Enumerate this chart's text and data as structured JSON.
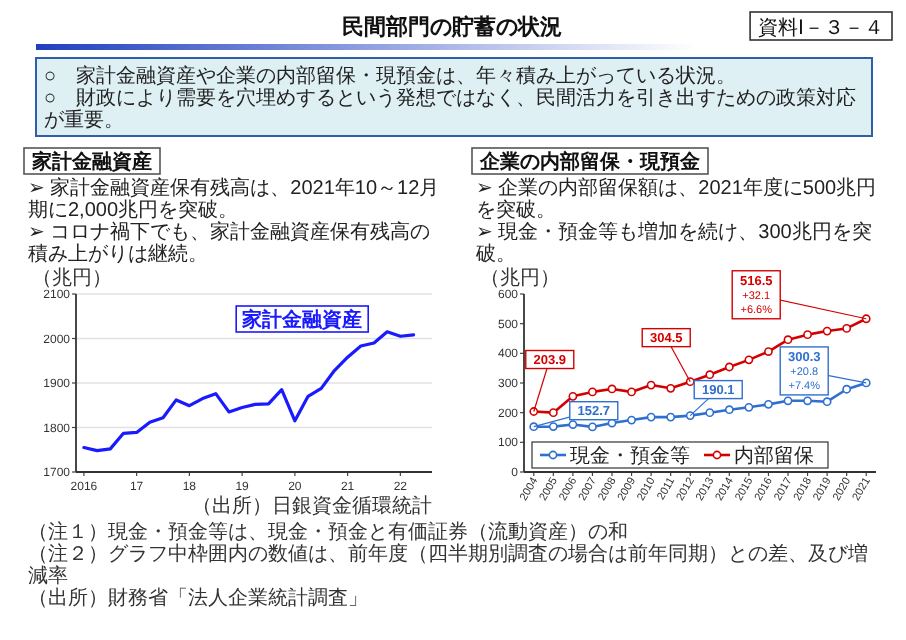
{
  "chart_data": [
    {
      "type": "other",
      "title": "民間部門の貯蓄の状況",
      "annotations": [
        "資料Ⅰ－３－４",
        "○　家計金融資産や企業の内部留保・現預金は、年々積み上がっている状況。",
        "○　財政により需要を穴埋めするという発想ではなく、民間活力を引き出すための政策対応が重要。"
      ]
    },
    {
      "type": "line",
      "title": "家計金融資産",
      "subtitle": "➢ 家計金融資産保有残高は、2021年10～12月期に2,000兆円を突破。\n➢ コロナ禍下でも、家計金融資産保有残高の積み上がりは継続。",
      "ylabel": "（兆円）",
      "x": [
        2016,
        2016.25,
        2016.5,
        2016.75,
        2017,
        2017.25,
        2017.5,
        2017.75,
        2018,
        2018.25,
        2018.5,
        2018.75,
        2019,
        2019.25,
        2019.5,
        2019.75,
        2020,
        2020.25,
        2020.5,
        2020.75,
        2021,
        2021.25,
        2021.5,
        2021.75,
        2022,
        2022.25
      ],
      "xlim": [
        2015.85,
        2022.6
      ],
      "xticks": [
        {
          "value": 2016,
          "label": "2016"
        },
        {
          "value": 2017,
          "label": "17"
        },
        {
          "value": 2018,
          "label": "18"
        },
        {
          "value": 2019,
          "label": "19"
        },
        {
          "value": 2020,
          "label": "20"
        },
        {
          "value": 2021,
          "label": "21"
        },
        {
          "value": 2022,
          "label": "22"
        }
      ],
      "ylim": [
        1700,
        2100
      ],
      "yticks": [
        1700,
        1800,
        1900,
        2000,
        2100
      ],
      "grid": "y",
      "series": [
        {
          "name": "家計金融資産",
          "color": "#1a1aff",
          "values": [
            1755,
            1748,
            1752,
            1787,
            1789,
            1812,
            1822,
            1862,
            1849,
            1865,
            1876,
            1835,
            1845,
            1852,
            1853,
            1885,
            1815,
            1870,
            1888,
            1928,
            1958,
            1983,
            1990,
            2015,
            2005,
            2008
          ]
        }
      ],
      "annotations": [
        "（出所）日銀資金循環統計"
      ]
    },
    {
      "type": "line",
      "title": "企業の内部留保・現預金",
      "subtitle": "➢ 企業の内部留保額は、2021年度に500兆円を突破。\n➢ 現金・預金等も増加を続け、300兆円を突破。",
      "ylabel": "（兆円）",
      "categories": [
        "2004",
        "2005",
        "2006",
        "2007",
        "2008",
        "2009",
        "2010",
        "2011",
        "2012",
        "2013",
        "2014",
        "2015",
        "2016",
        "2017",
        "2018",
        "2019",
        "2020",
        "2021"
      ],
      "ylim": [
        0,
        600
      ],
      "yticks": [
        0,
        100,
        200,
        300,
        400,
        500,
        600
      ],
      "marker": "circle",
      "legend": "bottom left",
      "series": [
        {
          "name": "現金・預金等",
          "color": "#2f6fd0",
          "values": [
            152.7,
            153,
            160,
            152,
            165,
            175,
            185,
            185,
            190.1,
            200,
            210,
            218,
            228,
            240,
            240,
            237,
            279,
            300.3
          ],
          "value_labels": [
            "152.7",
            null,
            null,
            null,
            null,
            null,
            null,
            null,
            "190.1",
            null,
            null,
            null,
            null,
            null,
            null,
            null,
            null,
            "300.3"
          ]
        },
        {
          "name": "内部留保",
          "color": "#d40000",
          "values": [
            203.9,
            200,
            255,
            270,
            280,
            270,
            293,
            282,
            304.5,
            328,
            354,
            378,
            406,
            446,
            463,
            475,
            484,
            516.5
          ],
          "value_labels": [
            "203.9",
            null,
            null,
            null,
            null,
            null,
            null,
            null,
            "304.5",
            null,
            null,
            null,
            null,
            null,
            null,
            null,
            null,
            "516.5"
          ]
        }
      ],
      "annotations": [
        {
          "text": "+32.1",
          "x": "2021",
          "y": 516.5
        },
        {
          "text": "+6.6%",
          "x": "2021",
          "y": 516.5
        },
        {
          "text": "+20.8",
          "x": "2021",
          "y": 300.3
        },
        {
          "text": "+7.4%",
          "x": "2021",
          "y": 300.3
        },
        "（注１）現金・預金等は、現金・預金と有価証券（流動資産）の和",
        "（注２）グラフ中枠囲内の数値は、前年度（四半期別調査の場合は前年同期）との差、及び増減率",
        "（出所）財務省「法人企業統計調査」"
      ]
    }
  ]
}
